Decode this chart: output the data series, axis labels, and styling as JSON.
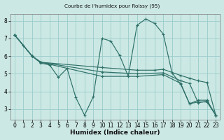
{
  "title": "Courbe de l'humidex pour Roissy (95)",
  "xlabel": "Humidex (Indice chaleur)",
  "bg_color": "#cce8e4",
  "grid_color": "#99cccc",
  "line_color": "#2e7068",
  "xlim": [
    -0.5,
    23.5
  ],
  "ylim": [
    2.4,
    8.4
  ],
  "xticks": [
    0,
    1,
    2,
    3,
    4,
    5,
    6,
    7,
    8,
    9,
    10,
    11,
    12,
    13,
    14,
    15,
    16,
    17,
    18,
    19,
    20,
    21,
    22,
    23
  ],
  "yticks": [
    3,
    4,
    5,
    6,
    7,
    8
  ],
  "lines": [
    {
      "x": [
        0,
        1,
        2,
        3,
        4,
        5,
        6,
        7,
        8,
        9,
        10,
        11,
        12,
        13,
        14,
        15,
        16,
        17,
        18,
        19,
        20,
        21,
        22,
        23
      ],
      "y": [
        7.2,
        6.6,
        6.0,
        5.6,
        5.5,
        4.8,
        5.3,
        3.65,
        2.65,
        3.7,
        7.0,
        6.85,
        6.05,
        4.85,
        7.75,
        8.1,
        7.85,
        7.25,
        5.05,
        4.4,
        3.3,
        3.5,
        3.5,
        2.65
      ]
    },
    {
      "x": [
        0,
        2,
        3,
        10,
        14,
        16,
        17,
        19,
        20,
        21,
        22,
        23
      ],
      "y": [
        7.2,
        6.0,
        5.65,
        5.35,
        5.2,
        5.2,
        5.25,
        4.9,
        4.75,
        4.6,
        4.5,
        2.65
      ]
    },
    {
      "x": [
        0,
        2,
        3,
        10,
        14,
        17,
        19,
        20,
        21,
        22,
        23
      ],
      "y": [
        7.2,
        6.0,
        5.65,
        5.1,
        5.0,
        5.05,
        4.6,
        4.45,
        3.35,
        3.45,
        2.65
      ]
    },
    {
      "x": [
        0,
        2,
        3,
        10,
        14,
        17,
        19,
        20,
        21,
        22,
        23
      ],
      "y": [
        7.2,
        6.0,
        5.65,
        4.85,
        4.85,
        4.95,
        4.45,
        3.3,
        3.4,
        3.4,
        2.65
      ]
    }
  ]
}
